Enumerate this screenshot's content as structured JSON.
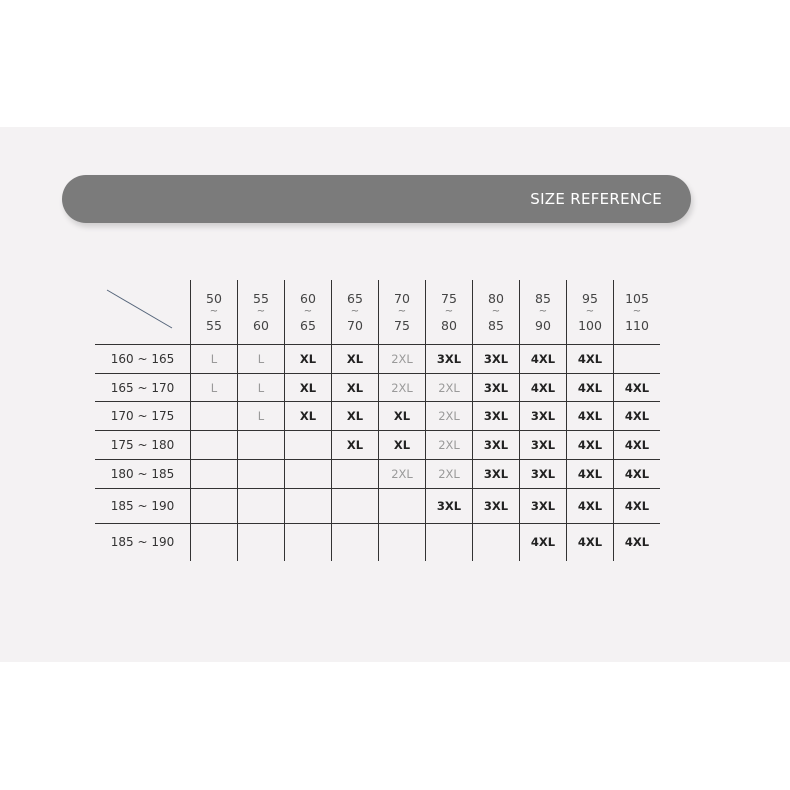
{
  "banner": {
    "title": "SIZE REFERENCE"
  },
  "weight_columns": [
    {
      "from": "50",
      "to": "55"
    },
    {
      "from": "55",
      "to": "60"
    },
    {
      "from": "60",
      "to": "65"
    },
    {
      "from": "65",
      "to": "70"
    },
    {
      "from": "70",
      "to": "75"
    },
    {
      "from": "75",
      "to": "80"
    },
    {
      "from": "80",
      "to": "85"
    },
    {
      "from": "85",
      "to": "90"
    },
    {
      "from": "95",
      "to": "100"
    },
    {
      "from": "105",
      "to": "110"
    }
  ],
  "separator": "~",
  "rows": [
    {
      "height": "160 ~ 165",
      "sizes": [
        "L",
        "L",
        "XL",
        "XL",
        "2XL",
        "3XL",
        "3XL",
        "4XL",
        "4XL",
        ""
      ]
    },
    {
      "height": "165 ~ 170",
      "sizes": [
        "L",
        "L",
        "XL",
        "XL",
        "2XL",
        "2XL",
        "3XL",
        "4XL",
        "4XL",
        "4XL"
      ]
    },
    {
      "height": "170 ~ 175",
      "sizes": [
        "",
        "L",
        "XL",
        "XL",
        "XL",
        "2XL",
        "3XL",
        "3XL",
        "4XL",
        "4XL"
      ]
    },
    {
      "height": "175 ~ 180",
      "sizes": [
        "",
        "",
        "",
        "XL",
        "XL",
        "2XL",
        "3XL",
        "3XL",
        "4XL",
        "4XL"
      ]
    },
    {
      "height": "180 ~ 185",
      "sizes": [
        "",
        "",
        "",
        "",
        "2XL",
        "2XL",
        "3XL",
        "3XL",
        "4XL",
        "4XL"
      ]
    },
    {
      "height": "185 ~ 190",
      "sizes": [
        "",
        "",
        "",
        "",
        "",
        "3XL",
        "3XL",
        "3XL",
        "4XL",
        "4XL"
      ]
    },
    {
      "height": "185 ~ 190",
      "sizes": [
        "",
        "",
        "",
        "",
        "",
        "",
        "",
        "4XL",
        "4XL",
        "4XL"
      ]
    }
  ],
  "light_sizes": [
    "L",
    "2XL"
  ],
  "colors": {
    "banner": "#7b7b7b",
    "background": "#f4f2f3",
    "light_text": "#9a9a9a",
    "dark_text": "#222222"
  }
}
